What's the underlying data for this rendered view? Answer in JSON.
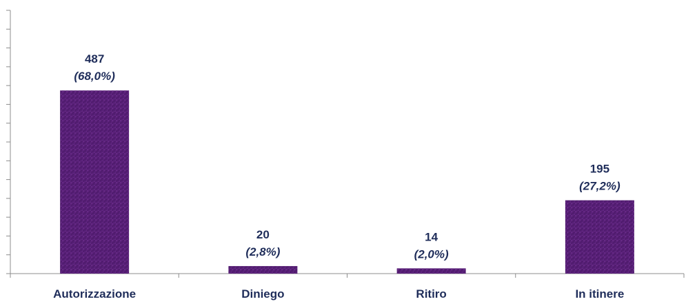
{
  "chart_data": {
    "type": "bar",
    "categories": [
      "Autorizzazione",
      "Diniego",
      "Ritiro",
      "In itinere"
    ],
    "values": [
      487,
      20,
      14,
      195
    ],
    "percent_labels": [
      "(68,0%)",
      "(2,8%)",
      "(2,0%)",
      "(27,2%)"
    ],
    "value_labels": [
      "487",
      "20",
      "14",
      "195"
    ],
    "title": "",
    "xlabel": "",
    "ylabel": "",
    "ylim": [
      0,
      700
    ],
    "y_tick_step": 50,
    "y_tick_labels_shown": false,
    "grid": false,
    "bar_color": "#5a1e78",
    "bar_color_light": "#7a3a9a",
    "text_color": "#1f2d5a"
  }
}
